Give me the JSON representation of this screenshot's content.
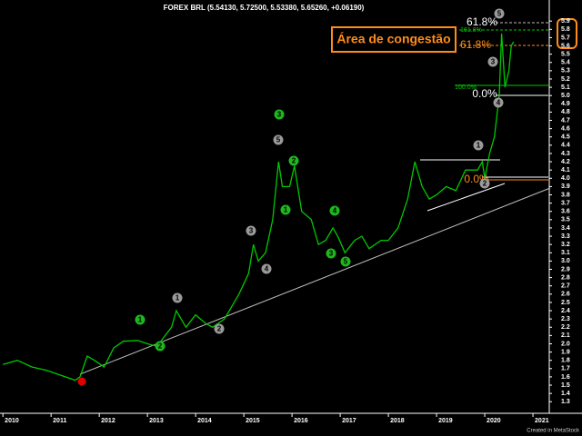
{
  "chart_data": {
    "type": "line",
    "title": "FOREX BRL (5.54130, 5.72500, 5.53380, 5.65260, +0.06190)",
    "x": [
      2010.0,
      2010.3,
      2010.6,
      2010.9,
      2011.2,
      2011.5,
      2011.6,
      2011.75,
      2011.9,
      2012.1,
      2012.3,
      2012.5,
      2012.8,
      2013.0,
      2013.2,
      2013.5,
      2013.6,
      2013.8,
      2014.0,
      2014.2,
      2014.35,
      2014.6,
      2014.9,
      2015.1,
      2015.2,
      2015.3,
      2015.45,
      2015.6,
      2015.72,
      2015.8,
      2015.95,
      2016.05,
      2016.2,
      2016.4,
      2016.55,
      2016.7,
      2016.85,
      2016.95,
      2017.1,
      2017.3,
      2017.45,
      2017.6,
      2017.85,
      2018.0,
      2018.2,
      2018.4,
      2018.55,
      2018.7,
      2018.85,
      2019.0,
      2019.2,
      2019.4,
      2019.6,
      2019.85,
      2019.95,
      2020.0,
      2020.1,
      2020.2,
      2020.3,
      2020.35,
      2020.42,
      2020.5,
      2020.55,
      2020.6
    ],
    "values": [
      1.75,
      1.8,
      1.72,
      1.68,
      1.62,
      1.56,
      1.6,
      1.85,
      1.8,
      1.72,
      1.95,
      2.03,
      2.04,
      2.0,
      1.97,
      2.2,
      2.4,
      2.2,
      2.35,
      2.25,
      2.2,
      2.3,
      2.6,
      2.85,
      3.2,
      3.0,
      3.1,
      3.5,
      4.2,
      3.9,
      3.9,
      4.15,
      3.6,
      3.5,
      3.2,
      3.25,
      3.4,
      3.3,
      3.1,
      3.25,
      3.3,
      3.15,
      3.25,
      3.25,
      3.4,
      3.75,
      4.2,
      3.9,
      3.75,
      3.8,
      3.9,
      3.85,
      4.1,
      4.1,
      4.2,
      4.0,
      4.3,
      4.5,
      5.0,
      5.75,
      5.1,
      5.3,
      5.6,
      5.65
    ],
    "color": "#00c800",
    "xlim": [
      2009.94,
      2021.32
    ],
    "xticks": [
      2010,
      2011,
      2012,
      2013,
      2014,
      2015,
      2016,
      2017,
      2018,
      2019,
      2020,
      2021
    ],
    "ylim": [
      1.16,
      5.99
    ],
    "yticks": [
      1.3,
      1.4,
      1.5,
      1.6,
      1.7,
      1.8,
      1.9,
      {
        "value": 2,
        "label": "2.0"
      },
      2.1,
      2.2,
      2.3,
      2.4,
      2.5,
      2.6,
      2.7,
      2.8,
      2.9,
      {
        "value": 3,
        "label": "3.0"
      },
      3.1,
      3.2,
      3.3,
      3.4,
      3.5,
      3.6,
      3.7,
      3.8,
      3.9,
      {
        "value": 4,
        "label": "4.0"
      },
      4.1,
      4.2,
      4.3,
      4.4,
      4.5,
      4.6,
      4.7,
      4.8,
      4.9,
      {
        "value": 5,
        "label": "5.0"
      },
      5.1,
      5.2,
      5.3,
      5.4,
      5.5,
      5.6,
      5.7,
      5.8,
      5.9
    ],
    "annotation": "Área de congestão",
    "fib_labels": [
      "61.8%",
      "161.8%",
      "61.8%",
      "100.0%",
      "0.0%",
      "0.0%"
    ],
    "wave_labels": [
      "1",
      "2",
      "1",
      "2",
      "3",
      "4",
      "5",
      "3",
      "1",
      "2",
      "4",
      "3",
      "5",
      "1",
      "2",
      "3",
      "4",
      "5"
    ],
    "credit": "Created in MetaStock"
  }
}
